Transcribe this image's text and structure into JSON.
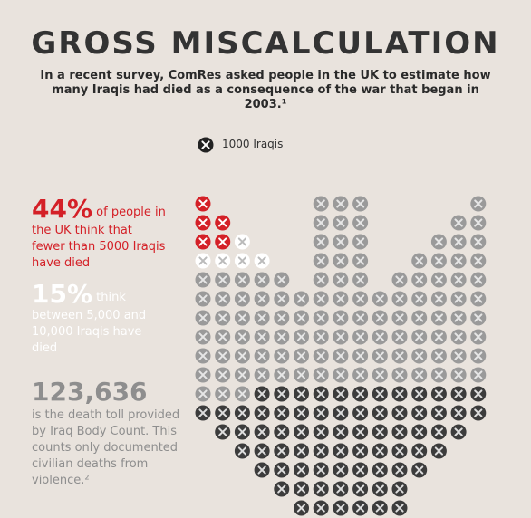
{
  "header": {
    "title": "GROSS MISCALCULATION",
    "subtitle": "In a recent survey, ComRes asked people in the UK to estimate how many Iraqis had died as a consequence of the war that began in 2003.¹"
  },
  "legend": {
    "label": "1000 Iraqis"
  },
  "stats": [
    {
      "figure": "44%",
      "text": "of people in the UK think that fewer than 5000 Iraqis have died"
    },
    {
      "figure": "15%",
      "text": "think between 5,000 and 10,000 Iraqis have died"
    },
    {
      "figure": "123,636",
      "text": "is the death toll provided by Iraq Body Count. This counts only documented civilian deaths from violence.²"
    }
  ]
}
